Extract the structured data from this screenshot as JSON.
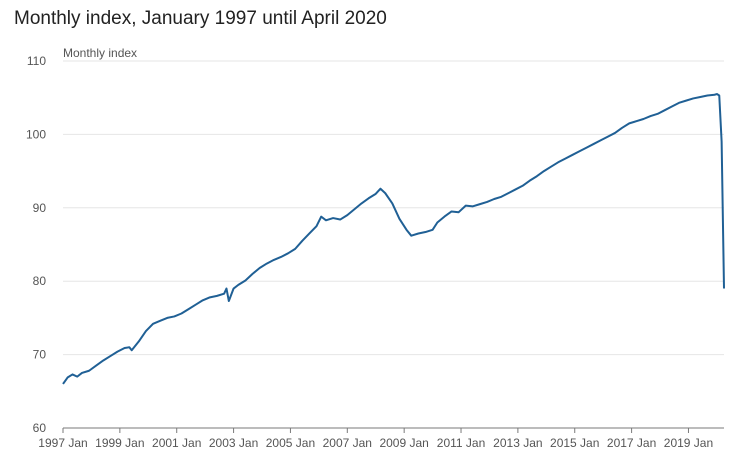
{
  "title": "Monthly index, January 1997 until April 2020",
  "chart_data": {
    "type": "line",
    "title": "Monthly index, January 1997 until April 2020",
    "ylabel": "Monthly index",
    "xlabel": "",
    "ylim": [
      60,
      110
    ],
    "yticks": [
      60,
      70,
      80,
      90,
      100,
      110
    ],
    "xlim": [
      "1997-01",
      "2020-04"
    ],
    "xticks": [
      {
        "label": "1997 Jan",
        "date": "1997-01"
      },
      {
        "label": "1999 Jan",
        "date": "1999-01"
      },
      {
        "label": "2001 Jan",
        "date": "2001-01"
      },
      {
        "label": "2003 Jan",
        "date": "2003-01"
      },
      {
        "label": "2005 Jan",
        "date": "2005-01"
      },
      {
        "label": "2007 Jan",
        "date": "2007-01"
      },
      {
        "label": "2009 Jan",
        "date": "2009-01"
      },
      {
        "label": "2011 Jan",
        "date": "2011-01"
      },
      {
        "label": "2013 Jan",
        "date": "2013-01"
      },
      {
        "label": "2015 Jan",
        "date": "2015-01"
      },
      {
        "label": "2017 Jan",
        "date": "2017-01"
      },
      {
        "label": "2019 Jan",
        "date": "2019-01"
      }
    ],
    "grid": true,
    "color": "#206095",
    "series": [
      {
        "name": "",
        "points": [
          [
            "1997-01",
            66.0
          ],
          [
            "1997-03",
            66.9
          ],
          [
            "1997-05",
            67.3
          ],
          [
            "1997-07",
            67.0
          ],
          [
            "1997-09",
            67.5
          ],
          [
            "1997-12",
            67.8
          ],
          [
            "1998-03",
            68.5
          ],
          [
            "1998-06",
            69.2
          ],
          [
            "1998-09",
            69.8
          ],
          [
            "1998-12",
            70.4
          ],
          [
            "1999-03",
            70.9
          ],
          [
            "1999-05",
            71.0
          ],
          [
            "1999-06",
            70.6
          ],
          [
            "1999-09",
            71.8
          ],
          [
            "1999-12",
            73.2
          ],
          [
            "2000-03",
            74.2
          ],
          [
            "2000-06",
            74.6
          ],
          [
            "2000-09",
            75.0
          ],
          [
            "2000-12",
            75.2
          ],
          [
            "2001-03",
            75.6
          ],
          [
            "2001-06",
            76.2
          ],
          [
            "2001-09",
            76.8
          ],
          [
            "2001-12",
            77.4
          ],
          [
            "2002-03",
            77.8
          ],
          [
            "2002-06",
            78.0
          ],
          [
            "2002-09",
            78.3
          ],
          [
            "2002-10",
            79.0
          ],
          [
            "2002-11",
            77.3
          ],
          [
            "2003-01",
            79.0
          ],
          [
            "2003-03",
            79.5
          ],
          [
            "2003-06",
            80.1
          ],
          [
            "2003-09",
            81.0
          ],
          [
            "2003-12",
            81.8
          ],
          [
            "2004-03",
            82.4
          ],
          [
            "2004-06",
            82.9
          ],
          [
            "2004-09",
            83.3
          ],
          [
            "2004-12",
            83.8
          ],
          [
            "2005-03",
            84.4
          ],
          [
            "2005-06",
            85.5
          ],
          [
            "2005-09",
            86.5
          ],
          [
            "2005-12",
            87.5
          ],
          [
            "2006-02",
            88.8
          ],
          [
            "2006-04",
            88.3
          ],
          [
            "2006-07",
            88.6
          ],
          [
            "2006-10",
            88.4
          ],
          [
            "2007-01",
            89.0
          ],
          [
            "2007-04",
            89.8
          ],
          [
            "2007-07",
            90.6
          ],
          [
            "2007-10",
            91.3
          ],
          [
            "2008-01",
            91.9
          ],
          [
            "2008-03",
            92.6
          ],
          [
            "2008-05",
            92.0
          ],
          [
            "2008-08",
            90.6
          ],
          [
            "2008-11",
            88.5
          ],
          [
            "2009-02",
            87.0
          ],
          [
            "2009-04",
            86.2
          ],
          [
            "2009-07",
            86.5
          ],
          [
            "2009-10",
            86.7
          ],
          [
            "2010-01",
            87.0
          ],
          [
            "2010-03",
            88.0
          ],
          [
            "2010-06",
            88.8
          ],
          [
            "2010-09",
            89.5
          ],
          [
            "2010-12",
            89.4
          ],
          [
            "2011-03",
            90.3
          ],
          [
            "2011-06",
            90.2
          ],
          [
            "2011-09",
            90.5
          ],
          [
            "2011-12",
            90.8
          ],
          [
            "2012-03",
            91.2
          ],
          [
            "2012-06",
            91.5
          ],
          [
            "2012-09",
            92.0
          ],
          [
            "2012-12",
            92.5
          ],
          [
            "2013-03",
            93.0
          ],
          [
            "2013-06",
            93.7
          ],
          [
            "2013-09",
            94.3
          ],
          [
            "2013-12",
            95.0
          ],
          [
            "2014-03",
            95.6
          ],
          [
            "2014-06",
            96.2
          ],
          [
            "2014-09",
            96.7
          ],
          [
            "2014-12",
            97.2
          ],
          [
            "2015-03",
            97.7
          ],
          [
            "2015-06",
            98.2
          ],
          [
            "2015-09",
            98.7
          ],
          [
            "2015-12",
            99.2
          ],
          [
            "2016-03",
            99.7
          ],
          [
            "2016-06",
            100.2
          ],
          [
            "2016-09",
            100.9
          ],
          [
            "2016-12",
            101.5
          ],
          [
            "2017-03",
            101.8
          ],
          [
            "2017-06",
            102.1
          ],
          [
            "2017-09",
            102.5
          ],
          [
            "2017-12",
            102.8
          ],
          [
            "2018-03",
            103.3
          ],
          [
            "2018-06",
            103.8
          ],
          [
            "2018-09",
            104.3
          ],
          [
            "2018-12",
            104.6
          ],
          [
            "2019-03",
            104.9
          ],
          [
            "2019-06",
            105.1
          ],
          [
            "2019-09",
            105.3
          ],
          [
            "2019-12",
            105.4
          ],
          [
            "2020-01",
            105.5
          ],
          [
            "2020-02",
            105.3
          ],
          [
            "2020-03",
            99.0
          ],
          [
            "2020-04",
            79.0
          ]
        ]
      }
    ]
  }
}
